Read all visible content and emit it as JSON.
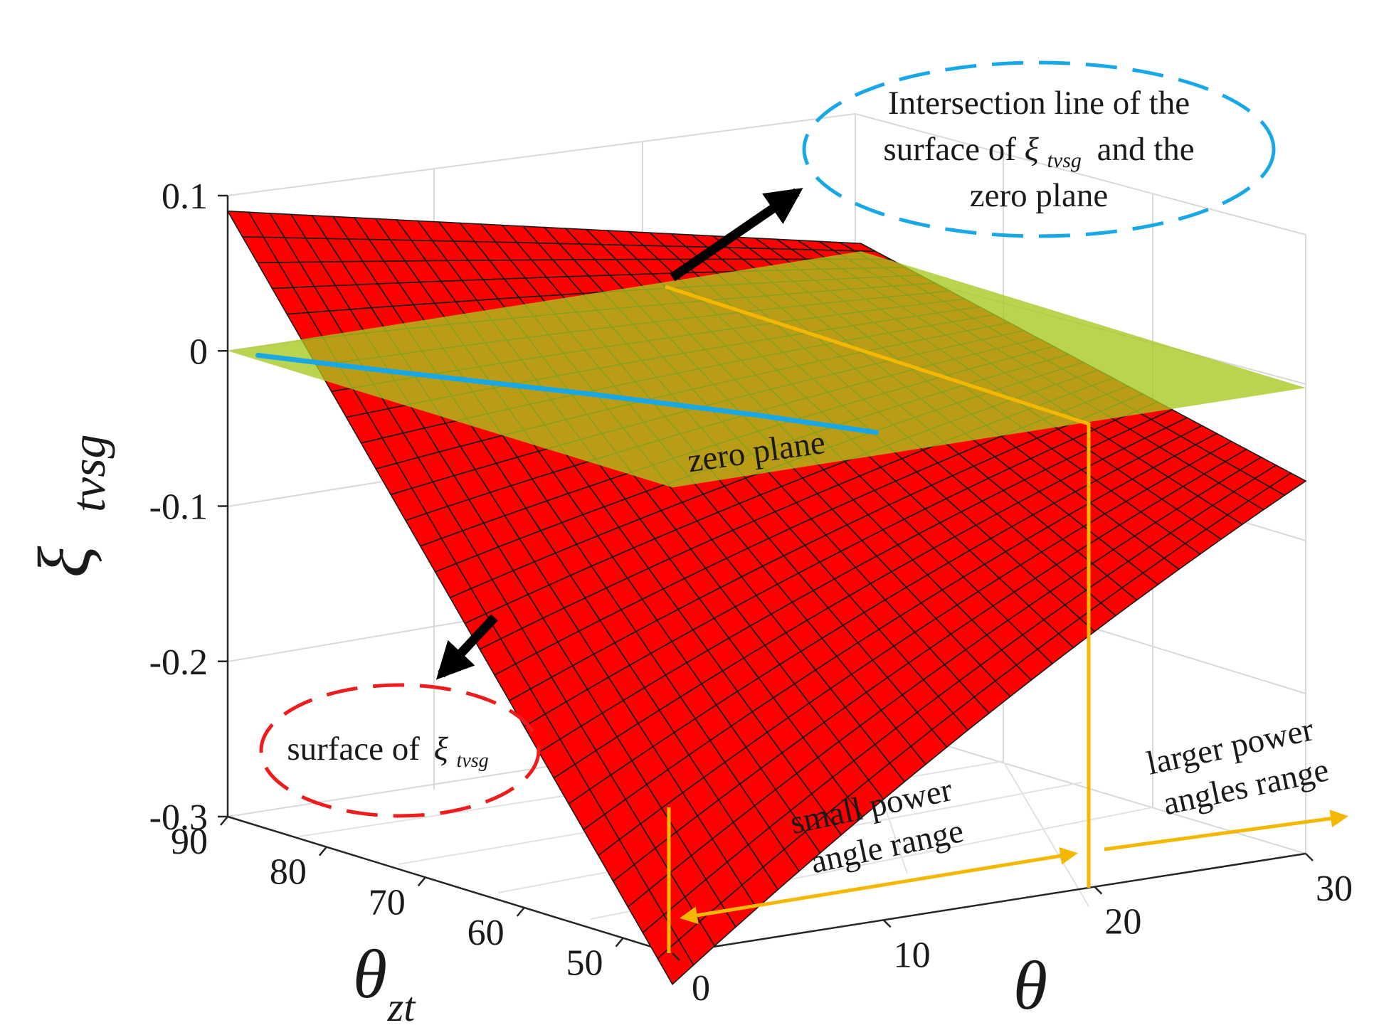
{
  "chart_data": {
    "type": "surface3d",
    "title": "",
    "zlabel": "ξ",
    "zlabel_sub": "tvsg",
    "xlabel": "θ",
    "ylabel": "θ",
    "ylabel_sub": "zt",
    "xlim": [
      0,
      30
    ],
    "ylim": [
      45,
      90
    ],
    "zlim": [
      -0.3,
      0.1
    ],
    "x_ticks": [
      "0",
      "10",
      "20",
      "30"
    ],
    "y_ticks": [
      "90",
      "80",
      "70",
      "60",
      "50"
    ],
    "z_ticks": [
      "0.1",
      "0",
      "-0.1",
      "-0.2",
      "-0.3"
    ],
    "x_tick_values": [
      0,
      10,
      20,
      30
    ],
    "y_tick_values": [
      90,
      80,
      70,
      60,
      50
    ],
    "z_tick_values": [
      0.1,
      0,
      -0.1,
      -0.2,
      -0.3
    ],
    "series": [
      {
        "name": "surface of ξtvsg",
        "color": "#ff0000",
        "mesh_color": "#1a1a1a",
        "corners": [
          {
            "x": 0,
            "y": 90,
            "z": 0.09
          },
          {
            "x": 30,
            "y": 90,
            "z": 0.005
          },
          {
            "x": 30,
            "y": 45,
            "z": -0.06
          },
          {
            "x": 0,
            "y": 45,
            "z": -0.32
          }
        ]
      },
      {
        "name": "zero plane",
        "color": "#a8c81e",
        "z": 0
      },
      {
        "name": "intersection line",
        "color": "#19a8e6",
        "points": [
          {
            "x": 0.5,
            "y": 88,
            "z": 0
          },
          {
            "x": 3,
            "y": 80,
            "z": 0
          },
          {
            "x": 7,
            "y": 68,
            "z": 0
          },
          {
            "x": 10,
            "y": 58,
            "z": 0
          },
          {
            "x": 12,
            "y": 50,
            "z": 0
          }
        ]
      }
    ],
    "annotations": {
      "intersection": [
        "Intersection line of the",
        "surface of",
        "and the",
        "zero plane"
      ],
      "xi": "ξ",
      "tvsg": "tvsg",
      "zero_plane": "zero plane",
      "surface_label": "surface of",
      "small_range": [
        "small power",
        "angle range"
      ],
      "larger_range": [
        "larger power",
        "angles range"
      ]
    },
    "colors": {
      "surface": "#ff0000",
      "plane": "#a8c81e",
      "intersection": "#19a8e6",
      "range_lines": "#f5b800",
      "grid": "#d9d9d9",
      "ellipse_blue": "#19a8e6",
      "ellipse_red": "#ee1c1c"
    }
  }
}
